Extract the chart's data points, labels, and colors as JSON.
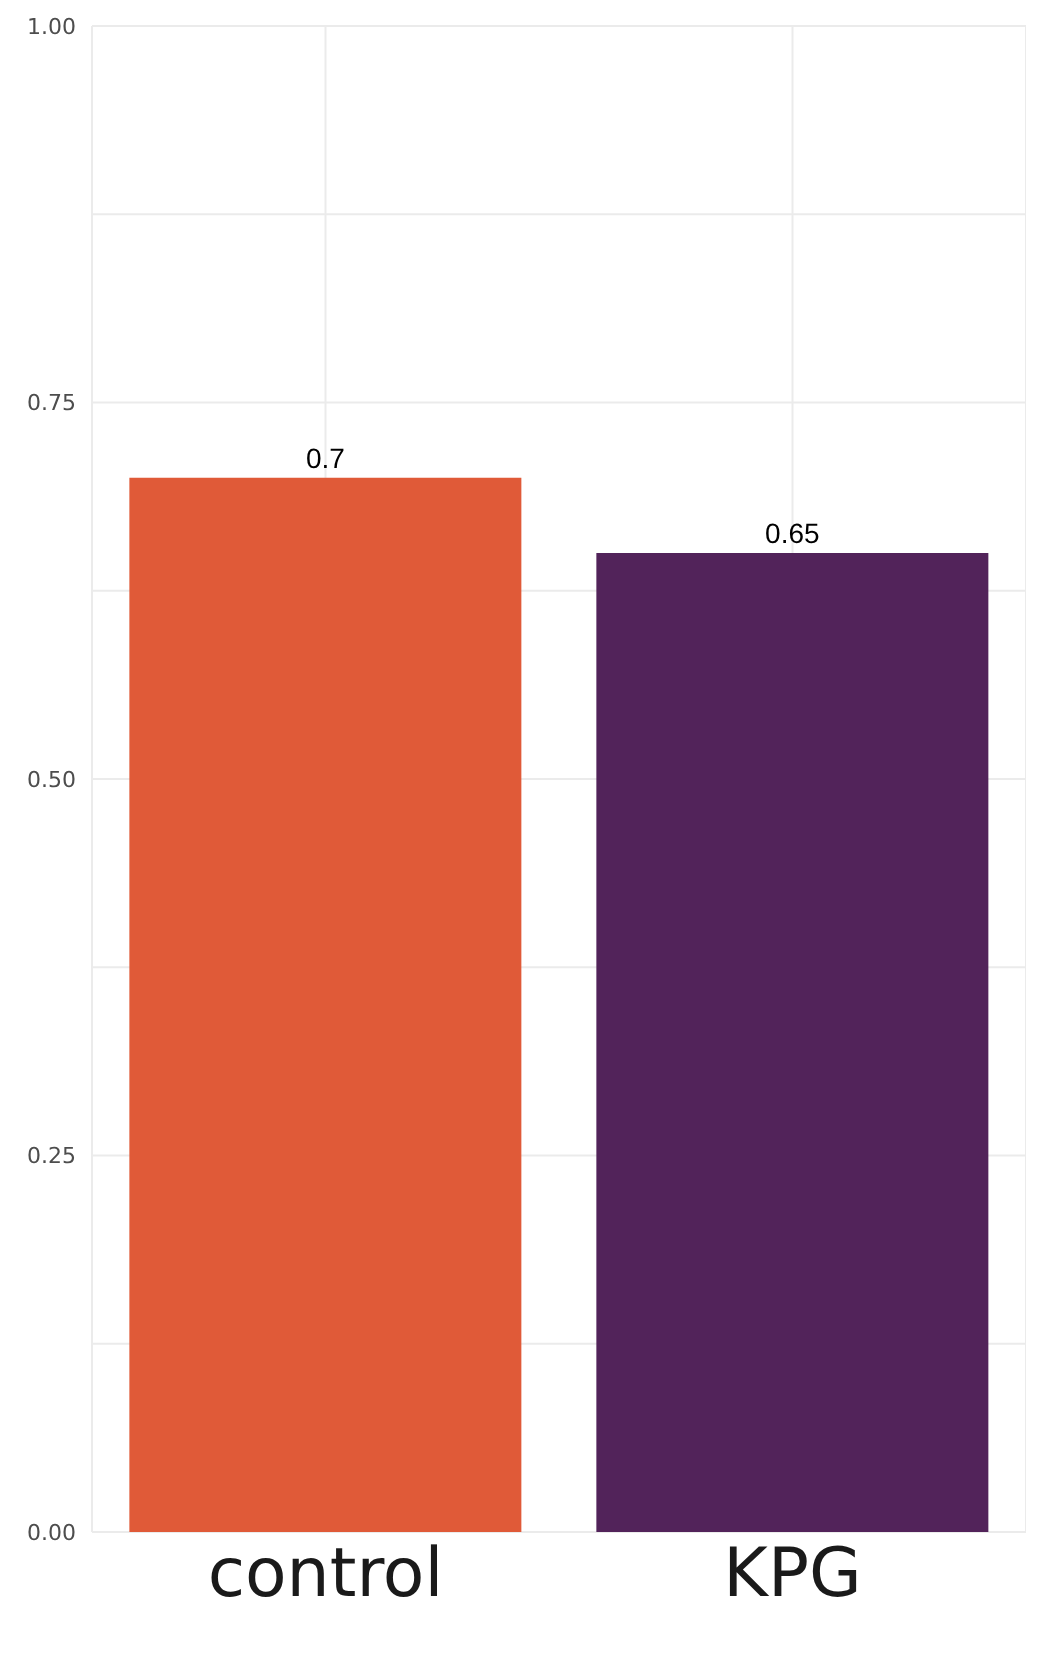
{
  "chart_data": {
    "type": "bar",
    "categories": [
      "control",
      "KPG"
    ],
    "values": [
      0.7,
      0.65
    ],
    "colors": [
      "#e05a38",
      "#52235a"
    ],
    "ylim": [
      0,
      1
    ],
    "yticks": [
      {
        "value": 0,
        "label": "0.00"
      },
      {
        "value": 0.125,
        "label": null
      },
      {
        "value": 0.25,
        "label": "0.25"
      },
      {
        "value": 0.375,
        "label": null
      },
      {
        "value": 0.5,
        "label": "0.50"
      },
      {
        "value": 0.625,
        "label": null
      },
      {
        "value": 0.75,
        "label": "0.75"
      },
      {
        "value": 0.875,
        "label": null
      },
      {
        "value": 1,
        "label": "1.00"
      }
    ],
    "grid": true,
    "data_labels": true
  }
}
